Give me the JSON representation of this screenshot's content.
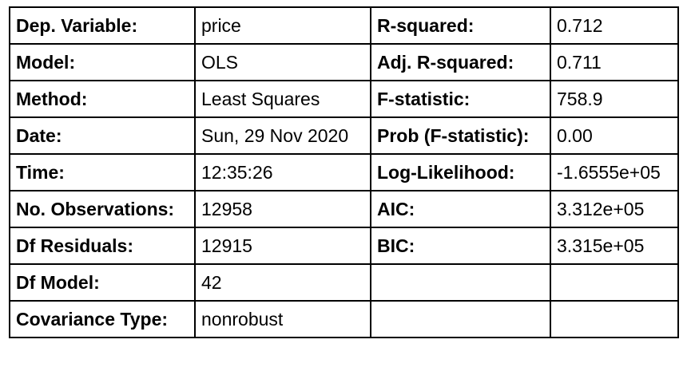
{
  "rows": [
    {
      "l1": "Dep. Variable:",
      "v1": "price",
      "l2": "R-squared:",
      "v2": "0.712"
    },
    {
      "l1": "Model:",
      "v1": "OLS",
      "l2": "Adj. R-squared:",
      "v2": "0.711"
    },
    {
      "l1": "Method:",
      "v1": "Least Squares",
      "l2": "F-statistic:",
      "v2": "758.9"
    },
    {
      "l1": "Date:",
      "v1": "Sun, 29 Nov 2020",
      "l2": "Prob (F-statistic):",
      "v2": "0.00"
    },
    {
      "l1": "Time:",
      "v1": "12:35:26",
      "l2": "Log-Likelihood:",
      "v2": "-1.6555e+05"
    },
    {
      "l1": "No. Observations:",
      "v1": "12958",
      "l2": "AIC:",
      "v2": "3.312e+05"
    },
    {
      "l1": "Df Residuals:",
      "v1": "12915",
      "l2": "BIC:",
      "v2": "3.315e+05"
    },
    {
      "l1": "Df Model:",
      "v1": "42",
      "l2": "",
      "v2": ""
    },
    {
      "l1": "Covariance Type:",
      "v1": "nonrobust",
      "l2": "",
      "v2": ""
    }
  ]
}
